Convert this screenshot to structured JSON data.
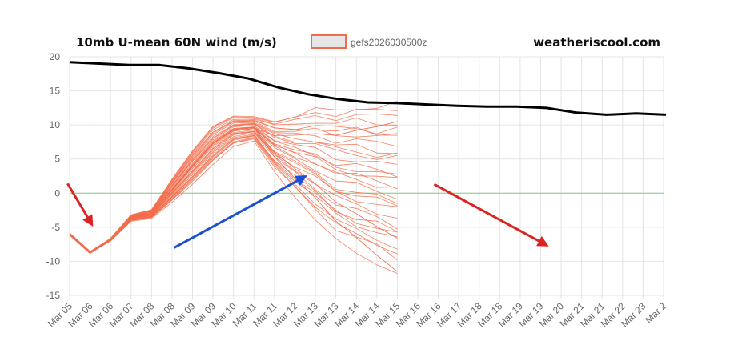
{
  "chart_data": {
    "type": "line",
    "title": "10mb U-mean 60N wind (m/s)",
    "brand": "weatheriscool.com",
    "legend": [
      {
        "name": "gefs2026030500z",
        "color": "#f26b4a"
      }
    ],
    "ylim": [
      -15,
      20
    ],
    "yticks": [
      20,
      15,
      10,
      5,
      0,
      -5,
      -10,
      -15
    ],
    "categories": [
      "Mar 05",
      "Mar 06",
      "Mar 06",
      "Mar 07",
      "Mar 08",
      "Mar 08",
      "Mar 09",
      "Mar 09",
      "Mar 10",
      "Mar 11",
      "Mar 11",
      "Mar 12",
      "Mar 13",
      "Mar 13",
      "Mar 14",
      "Mar 14",
      "Mar 15",
      "Mar 16",
      "Mar 16",
      "Mar 17",
      "Mar 18",
      "Mar 18",
      "Mar 19",
      "Mar 19",
      "Mar 20",
      "Mar 21",
      "Mar 21",
      "Mar 22",
      "Mar 23",
      "Mar 2"
    ],
    "climatology": {
      "name": "climatology",
      "color": "#000000",
      "values": [
        19.2,
        19.0,
        18.8,
        18.8,
        18.3,
        17.6,
        16.8,
        15.5,
        14.5,
        13.8,
        13.3,
        13.2,
        13.0,
        12.8,
        12.7,
        12.7,
        12.5,
        11.8,
        11.5,
        11.7,
        11.5
      ]
    },
    "ensemble_mean": {
      "values": [
        -6.0,
        -8.7,
        -6.8,
        -3.6,
        -3.0,
        0.5,
        4.0,
        7.3,
        9.3,
        9.6,
        7.2,
        6.0,
        5.0,
        3.5,
        3.0,
        2.3,
        1.8
      ]
    },
    "ensemble_shape": [
      0.0,
      0.0,
      0.05,
      0.12,
      0.16,
      0.42,
      0.62,
      0.7,
      0.55,
      0.45,
      0.95,
      1.45,
      2.0,
      2.4,
      2.7,
      2.8,
      3.1
    ],
    "ensemble_offsets": [
      0.0,
      0.35,
      -0.35,
      0.7,
      -0.7,
      1.05,
      -1.05,
      1.4,
      -1.4,
      1.75,
      -1.75,
      2.1,
      -2.1,
      2.45,
      -2.45,
      2.8,
      -2.8,
      3.15,
      -3.15,
      3.6,
      -3.6,
      -4.4,
      0.2,
      -0.2,
      1.2,
      -1.2,
      2.3,
      -2.6,
      3.4,
      -3.4
    ],
    "ensemble_extremes": [
      {
        "index": 16,
        "value": 10.5
      },
      {
        "index": 16,
        "value": -6.6
      },
      {
        "index": 16,
        "value": -11.5
      }
    ],
    "zero_line": {
      "value": 0,
      "color": "#7fd27f"
    },
    "annotations": [
      {
        "type": "arrow",
        "color": "#dd2222",
        "from": [
          -0.1,
          1.4
        ],
        "to": [
          1.15,
          -4.9
        ]
      },
      {
        "type": "arrow",
        "color": "#1a4fd6",
        "from": [
          5.1,
          -8.0
        ],
        "to": [
          11.6,
          2.6
        ]
      },
      {
        "type": "arrow",
        "color": "#dd2222",
        "from": [
          17.8,
          1.3
        ],
        "to": [
          23.4,
          -7.8
        ]
      }
    ]
  }
}
